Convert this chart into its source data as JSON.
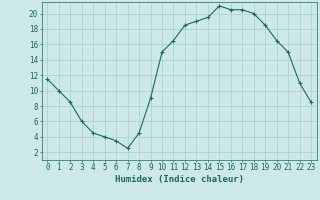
{
  "x": [
    0,
    1,
    2,
    3,
    4,
    5,
    6,
    7,
    8,
    9,
    10,
    11,
    12,
    13,
    14,
    15,
    16,
    17,
    18,
    19,
    20,
    21,
    22,
    23
  ],
  "y": [
    11.5,
    10.0,
    8.5,
    6.0,
    4.5,
    4.0,
    3.5,
    2.5,
    4.5,
    9.0,
    15.0,
    16.5,
    18.5,
    19.0,
    19.5,
    21.0,
    20.5,
    20.5,
    20.0,
    18.5,
    16.5,
    15.0,
    11.0,
    8.5
  ],
  "xlabel": "Humidex (Indice chaleur)",
  "xlim_min": -0.5,
  "xlim_max": 23.5,
  "ylim_min": 1.0,
  "ylim_max": 21.5,
  "yticks": [
    2,
    4,
    6,
    8,
    10,
    12,
    14,
    16,
    18,
    20
  ],
  "xticks": [
    0,
    1,
    2,
    3,
    4,
    5,
    6,
    7,
    8,
    9,
    10,
    11,
    12,
    13,
    14,
    15,
    16,
    17,
    18,
    19,
    20,
    21,
    22,
    23
  ],
  "line_color": "#1a6b5a",
  "marker": "+",
  "bg_color": "#cce8e8",
  "grid_color": "#aacece",
  "xlabel_fontsize": 6.5,
  "tick_fontsize": 5.5,
  "linewidth": 0.8,
  "markersize": 3.5,
  "markeredgewidth": 0.8
}
